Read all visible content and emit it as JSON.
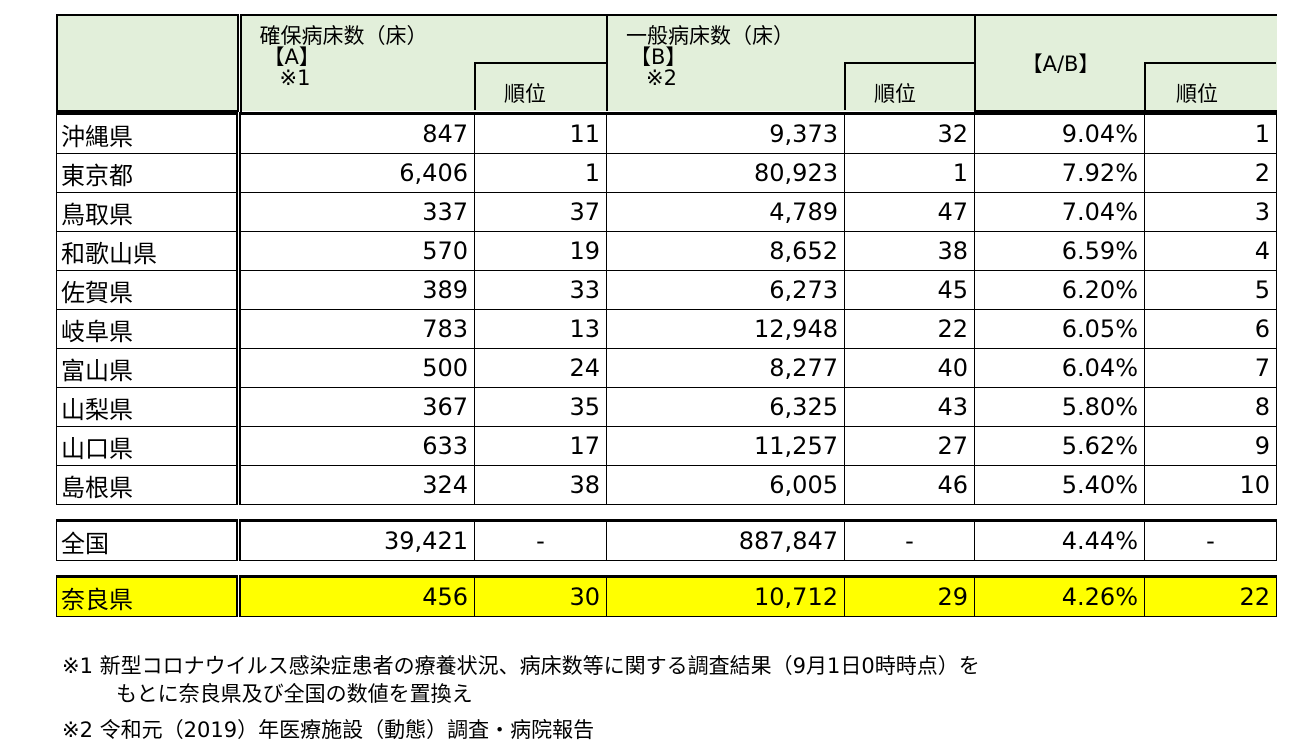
{
  "headers": {
    "secured_title": "確保病床数（床）",
    "secured_sub": "【A】",
    "secured_note": "※1",
    "general_title": "一般病床数（床）",
    "general_sub": "【B】",
    "general_note": "※2",
    "ratio_title": "【A/B】",
    "rank_label": "順位"
  },
  "rows": [
    {
      "name": "沖縄県",
      "a": "847",
      "a_rank": "11",
      "b": "9,373",
      "b_rank": "32",
      "ratio": "9.04%",
      "ratio_rank": "1"
    },
    {
      "name": "東京都",
      "a": "6,406",
      "a_rank": "1",
      "b": "80,923",
      "b_rank": "1",
      "ratio": "7.92%",
      "ratio_rank": "2"
    },
    {
      "name": "鳥取県",
      "a": "337",
      "a_rank": "37",
      "b": "4,789",
      "b_rank": "47",
      "ratio": "7.04%",
      "ratio_rank": "3"
    },
    {
      "name": "和歌山県",
      "a": "570",
      "a_rank": "19",
      "b": "8,652",
      "b_rank": "38",
      "ratio": "6.59%",
      "ratio_rank": "4"
    },
    {
      "name": "佐賀県",
      "a": "389",
      "a_rank": "33",
      "b": "6,273",
      "b_rank": "45",
      "ratio": "6.20%",
      "ratio_rank": "5"
    },
    {
      "name": "岐阜県",
      "a": "783",
      "a_rank": "13",
      "b": "12,948",
      "b_rank": "22",
      "ratio": "6.05%",
      "ratio_rank": "6"
    },
    {
      "name": "富山県",
      "a": "500",
      "a_rank": "24",
      "b": "8,277",
      "b_rank": "40",
      "ratio": "6.04%",
      "ratio_rank": "7"
    },
    {
      "name": "山梨県",
      "a": "367",
      "a_rank": "35",
      "b": "6,325",
      "b_rank": "43",
      "ratio": "5.80%",
      "ratio_rank": "8"
    },
    {
      "name": "山口県",
      "a": "633",
      "a_rank": "17",
      "b": "11,257",
      "b_rank": "27",
      "ratio": "5.62%",
      "ratio_rank": "9"
    },
    {
      "name": "島根県",
      "a": "324",
      "a_rank": "38",
      "b": "6,005",
      "b_rank": "46",
      "ratio": "5.40%",
      "ratio_rank": "10"
    }
  ],
  "national": {
    "name": "全国",
    "a": "39,421",
    "a_rank": "-",
    "b": "887,847",
    "b_rank": "-",
    "ratio": "4.44%",
    "ratio_rank": "-"
  },
  "nara": {
    "name": "奈良県",
    "a": "456",
    "a_rank": "30",
    "b": "10,712",
    "b_rank": "29",
    "ratio": "4.26%",
    "ratio_rank": "22"
  },
  "notes": {
    "note1_line1": "※1 新型コロナウイルス感染症患者の療養状況、病床数等に関する調査結果（9月1日0時時点）を",
    "note1_line2": "もとに奈良県及び全国の数値を置換え",
    "note2": "※2 令和元（2019）年医療施設（動態）調査・病院報告"
  },
  "colors": {
    "header_bg": "#e2efda",
    "highlight": "#ffff00"
  }
}
